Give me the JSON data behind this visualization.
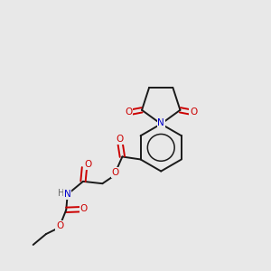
{
  "background_color": "#e8e8e8",
  "bond_color": "#1a1a1a",
  "atom_colors": {
    "O": "#cc0000",
    "N": "#0000cc",
    "C": "#1a1a1a",
    "H": "#666666"
  },
  "figsize": [
    3.0,
    3.0
  ],
  "dpi": 100
}
